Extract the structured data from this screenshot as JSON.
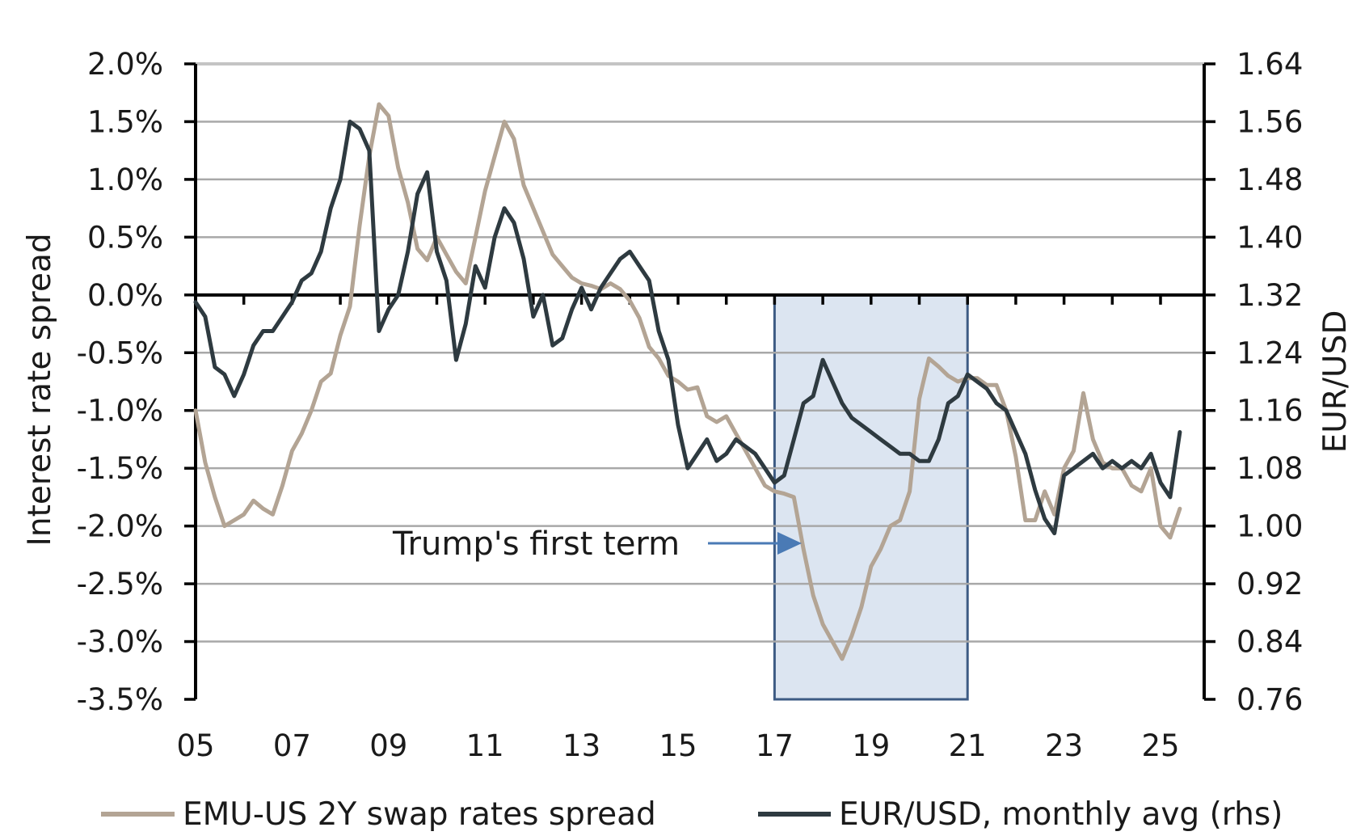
{
  "chart_data": {
    "type": "line",
    "title": "",
    "ylabel": "Interest rate spread",
    "y2label": "EUR/USD",
    "ylim": [
      -3.5,
      2.0
    ],
    "y2lim": [
      0.76,
      1.64
    ],
    "xlim": [
      2005.0,
      2025.8
    ],
    "x_ticks": [
      {
        "value": 2005,
        "label": "05"
      },
      {
        "value": 2007,
        "label": "07"
      },
      {
        "value": 2009,
        "label": "09"
      },
      {
        "value": 2011,
        "label": "11"
      },
      {
        "value": 2013,
        "label": "13"
      },
      {
        "value": 2015,
        "label": "15"
      },
      {
        "value": 2017,
        "label": "17"
      },
      {
        "value": 2019,
        "label": "19"
      },
      {
        "value": 2021,
        "label": "21"
      },
      {
        "value": 2023,
        "label": "23"
      },
      {
        "value": 2025,
        "label": "25"
      }
    ],
    "y_ticks": [
      {
        "value": 2.0,
        "label": "2.0%"
      },
      {
        "value": 1.5,
        "label": "1.5%"
      },
      {
        "value": 1.0,
        "label": "1.0%"
      },
      {
        "value": 0.5,
        "label": "0.5%"
      },
      {
        "value": 0.0,
        "label": "0.0%"
      },
      {
        "value": -0.5,
        "label": "-0.5%"
      },
      {
        "value": -1.0,
        "label": "-1.0%"
      },
      {
        "value": -1.5,
        "label": "-1.5%"
      },
      {
        "value": -2.0,
        "label": "-2.0%"
      },
      {
        "value": -2.5,
        "label": "-2.5%"
      },
      {
        "value": -3.0,
        "label": "-3.0%"
      },
      {
        "value": -3.5,
        "label": "-3.5%"
      }
    ],
    "y2_ticks": [
      {
        "value": 1.64,
        "label": "1.64"
      },
      {
        "value": 1.56,
        "label": "1.56"
      },
      {
        "value": 1.48,
        "label": "1.48"
      },
      {
        "value": 1.4,
        "label": "1.40"
      },
      {
        "value": 1.32,
        "label": "1.32"
      },
      {
        "value": 1.24,
        "label": "1.24"
      },
      {
        "value": 1.16,
        "label": "1.16"
      },
      {
        "value": 1.08,
        "label": "1.08"
      },
      {
        "value": 1.0,
        "label": "1.00"
      },
      {
        "value": 0.92,
        "label": "0.92"
      },
      {
        "value": 0.84,
        "label": "0.84"
      },
      {
        "value": 0.76,
        "label": "0.76"
      }
    ],
    "grid": true,
    "series": [
      {
        "name": "EMU-US 2Y swap rates spread",
        "axis": "left",
        "color": "#b3a494",
        "x": [
          2005.0,
          2005.2,
          2005.4,
          2005.6,
          2005.8,
          2006.0,
          2006.2,
          2006.4,
          2006.6,
          2006.8,
          2007.0,
          2007.2,
          2007.4,
          2007.6,
          2007.8,
          2008.0,
          2008.2,
          2008.4,
          2008.6,
          2008.8,
          2009.0,
          2009.2,
          2009.4,
          2009.6,
          2009.8,
          2010.0,
          2010.2,
          2010.4,
          2010.6,
          2010.8,
          2011.0,
          2011.2,
          2011.4,
          2011.6,
          2011.8,
          2012.0,
          2012.2,
          2012.4,
          2012.6,
          2012.8,
          2013.0,
          2013.2,
          2013.4,
          2013.6,
          2013.8,
          2014.0,
          2014.2,
          2014.4,
          2014.6,
          2014.8,
          2015.0,
          2015.2,
          2015.4,
          2015.6,
          2015.8,
          2016.0,
          2016.2,
          2016.4,
          2016.6,
          2016.8,
          2017.0,
          2017.2,
          2017.4,
          2017.6,
          2017.8,
          2018.0,
          2018.2,
          2018.4,
          2018.6,
          2018.8,
          2019.0,
          2019.2,
          2019.4,
          2019.6,
          2019.8,
          2020.0,
          2020.2,
          2020.4,
          2020.6,
          2020.8,
          2021.0,
          2021.2,
          2021.4,
          2021.6,
          2021.8,
          2022.0,
          2022.2,
          2022.4,
          2022.6,
          2022.8,
          2023.0,
          2023.2,
          2023.4,
          2023.6,
          2023.8,
          2024.0,
          2024.2,
          2024.4,
          2024.6,
          2024.8,
          2025.0,
          2025.2,
          2025.4
        ],
        "values": [
          -1.0,
          -1.45,
          -1.75,
          -2.0,
          -1.95,
          -1.9,
          -1.78,
          -1.85,
          -1.9,
          -1.65,
          -1.35,
          -1.2,
          -1.0,
          -0.75,
          -0.68,
          -0.35,
          -0.1,
          0.6,
          1.2,
          1.65,
          1.55,
          1.1,
          0.8,
          0.4,
          0.3,
          0.5,
          0.35,
          0.2,
          0.1,
          0.5,
          0.9,
          1.2,
          1.5,
          1.35,
          0.95,
          0.75,
          0.55,
          0.35,
          0.25,
          0.15,
          0.1,
          0.08,
          0.05,
          0.1,
          0.05,
          -0.05,
          -0.2,
          -0.45,
          -0.55,
          -0.7,
          -0.75,
          -0.82,
          -0.8,
          -1.05,
          -1.1,
          -1.05,
          -1.2,
          -1.35,
          -1.5,
          -1.65,
          -1.7,
          -1.72,
          -1.75,
          -2.2,
          -2.6,
          -2.85,
          -3.0,
          -3.15,
          -2.95,
          -2.7,
          -2.35,
          -2.2,
          -2.0,
          -1.95,
          -1.7,
          -0.9,
          -0.55,
          -0.62,
          -0.7,
          -0.75,
          -0.72,
          -0.72,
          -0.78,
          -0.78,
          -1.0,
          -1.4,
          -1.95,
          -1.95,
          -1.7,
          -1.9,
          -1.5,
          -1.35,
          -0.85,
          -1.25,
          -1.45,
          -1.5,
          -1.5,
          -1.65,
          -1.7,
          -1.5,
          -2.0,
          -2.1,
          -1.85
        ]
      },
      {
        "name": "EUR/USD, monthly avg (rhs)",
        "axis": "right",
        "color": "#2e3a40",
        "x": [
          2005.0,
          2005.2,
          2005.4,
          2005.6,
          2005.8,
          2006.0,
          2006.2,
          2006.4,
          2006.6,
          2006.8,
          2007.0,
          2007.2,
          2007.4,
          2007.6,
          2007.8,
          2008.0,
          2008.2,
          2008.4,
          2008.6,
          2008.8,
          2009.0,
          2009.2,
          2009.4,
          2009.6,
          2009.8,
          2010.0,
          2010.2,
          2010.4,
          2010.6,
          2010.8,
          2011.0,
          2011.2,
          2011.4,
          2011.6,
          2011.8,
          2012.0,
          2012.2,
          2012.4,
          2012.6,
          2012.8,
          2013.0,
          2013.2,
          2013.4,
          2013.6,
          2013.8,
          2014.0,
          2014.2,
          2014.4,
          2014.6,
          2014.8,
          2015.0,
          2015.2,
          2015.4,
          2015.6,
          2015.8,
          2016.0,
          2016.2,
          2016.4,
          2016.6,
          2016.8,
          2017.0,
          2017.2,
          2017.4,
          2017.6,
          2017.8,
          2018.0,
          2018.2,
          2018.4,
          2018.6,
          2018.8,
          2019.0,
          2019.2,
          2019.4,
          2019.6,
          2019.8,
          2020.0,
          2020.2,
          2020.4,
          2020.6,
          2020.8,
          2021.0,
          2021.2,
          2021.4,
          2021.6,
          2021.8,
          2022.0,
          2022.2,
          2022.4,
          2022.6,
          2022.8,
          2023.0,
          2023.2,
          2023.4,
          2023.6,
          2023.8,
          2024.0,
          2024.2,
          2024.4,
          2024.6,
          2024.8,
          2025.0,
          2025.2,
          2025.4
        ],
        "values": [
          1.31,
          1.29,
          1.22,
          1.21,
          1.18,
          1.21,
          1.25,
          1.27,
          1.27,
          1.29,
          1.31,
          1.34,
          1.35,
          1.38,
          1.44,
          1.48,
          1.56,
          1.55,
          1.52,
          1.27,
          1.3,
          1.32,
          1.38,
          1.46,
          1.49,
          1.38,
          1.34,
          1.23,
          1.28,
          1.36,
          1.33,
          1.4,
          1.44,
          1.42,
          1.37,
          1.29,
          1.32,
          1.25,
          1.26,
          1.3,
          1.33,
          1.3,
          1.33,
          1.35,
          1.37,
          1.38,
          1.36,
          1.34,
          1.27,
          1.23,
          1.14,
          1.08,
          1.1,
          1.12,
          1.09,
          1.1,
          1.12,
          1.11,
          1.1,
          1.08,
          1.06,
          1.07,
          1.12,
          1.17,
          1.18,
          1.23,
          1.2,
          1.17,
          1.15,
          1.14,
          1.13,
          1.12,
          1.11,
          1.1,
          1.1,
          1.09,
          1.09,
          1.12,
          1.17,
          1.18,
          1.21,
          1.2,
          1.19,
          1.17,
          1.16,
          1.13,
          1.1,
          1.05,
          1.01,
          0.99,
          1.07,
          1.08,
          1.09,
          1.1,
          1.08,
          1.09,
          1.08,
          1.09,
          1.08,
          1.1,
          1.06,
          1.04,
          1.13
        ]
      }
    ],
    "annotations": [
      {
        "type": "shaded_region",
        "x_start": 2017.0,
        "x_end": 2021.0,
        "fill": "#dce5f1",
        "border": "#3d5b84"
      },
      {
        "type": "arrow_label",
        "text": "Trump's first term",
        "arrow_color": "#4a7ab5"
      }
    ],
    "legend_position": "bottom"
  }
}
